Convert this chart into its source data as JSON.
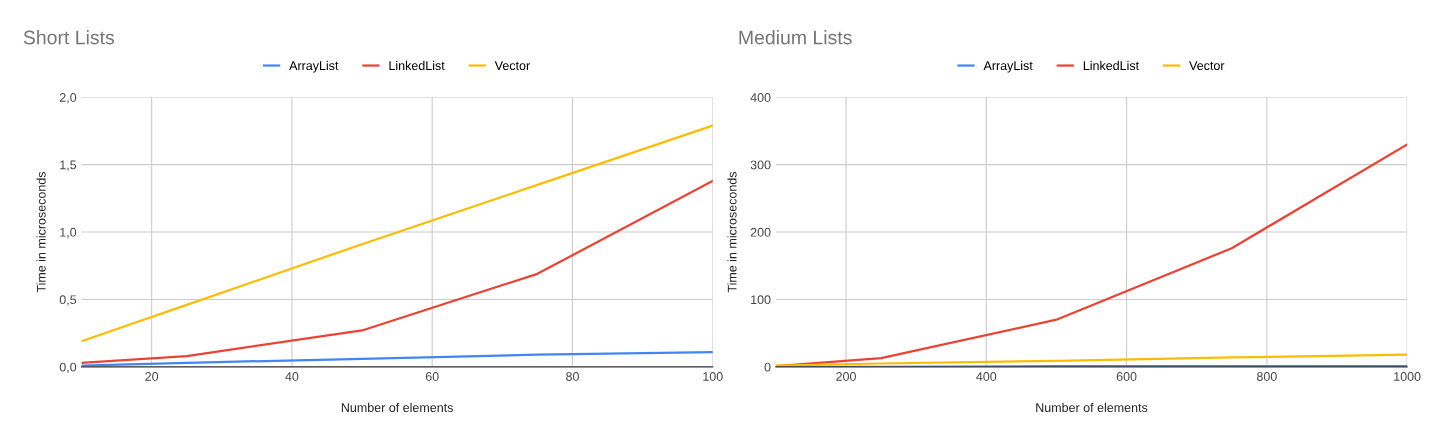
{
  "chart_data": [
    {
      "type": "line",
      "title": "Short Lists",
      "xlabel": "Number of elements",
      "ylabel": "Time in microseconds",
      "x": [
        10,
        25,
        50,
        75,
        100
      ],
      "series": [
        {
          "name": "ArrayList",
          "color": "#4285f4",
          "values": [
            0.01,
            0.03,
            0.06,
            0.09,
            0.11
          ]
        },
        {
          "name": "LinkedList",
          "color": "#ea4335",
          "values": [
            0.03,
            0.08,
            0.27,
            0.69,
            1.38
          ]
        },
        {
          "name": "Vector",
          "color": "#fbbc04",
          "values": [
            0.19,
            0.46,
            0.91,
            1.35,
            1.79
          ]
        }
      ],
      "xlim": [
        10,
        100
      ],
      "xticks": [
        20,
        40,
        60,
        80,
        100
      ],
      "ylim": [
        0,
        2
      ],
      "yticks": [
        {
          "value": 0,
          "label": "0,0"
        },
        {
          "value": 0.5,
          "label": "0,5"
        },
        {
          "value": 1,
          "label": "1,0"
        },
        {
          "value": 1.5,
          "label": "1,5"
        },
        {
          "value": 2,
          "label": "2,0"
        }
      ],
      "grid": true,
      "legend": "top",
      "marker": "none",
      "line_style": "solid"
    },
    {
      "type": "line",
      "title": "Medium Lists",
      "xlabel": "Number of elements",
      "ylabel": "Time in microseconds",
      "x": [
        100,
        250,
        500,
        750,
        1000
      ],
      "series": [
        {
          "name": "ArrayList",
          "color": "#4285f4",
          "values": [
            0,
            0,
            1,
            1,
            1
          ]
        },
        {
          "name": "LinkedList",
          "color": "#ea4335",
          "values": [
            1,
            13,
            70,
            176,
            330
          ]
        },
        {
          "name": "Vector",
          "color": "#fbbc04",
          "values": [
            2,
            5,
            9,
            14,
            18
          ]
        }
      ],
      "xlim": [
        100,
        1000
      ],
      "xticks": [
        200,
        400,
        600,
        800,
        1000
      ],
      "ylim": [
        0,
        400
      ],
      "yticks": [
        0,
        100,
        200,
        300,
        400
      ],
      "grid": true,
      "legend": "top",
      "marker": "none",
      "line_style": "solid"
    }
  ]
}
